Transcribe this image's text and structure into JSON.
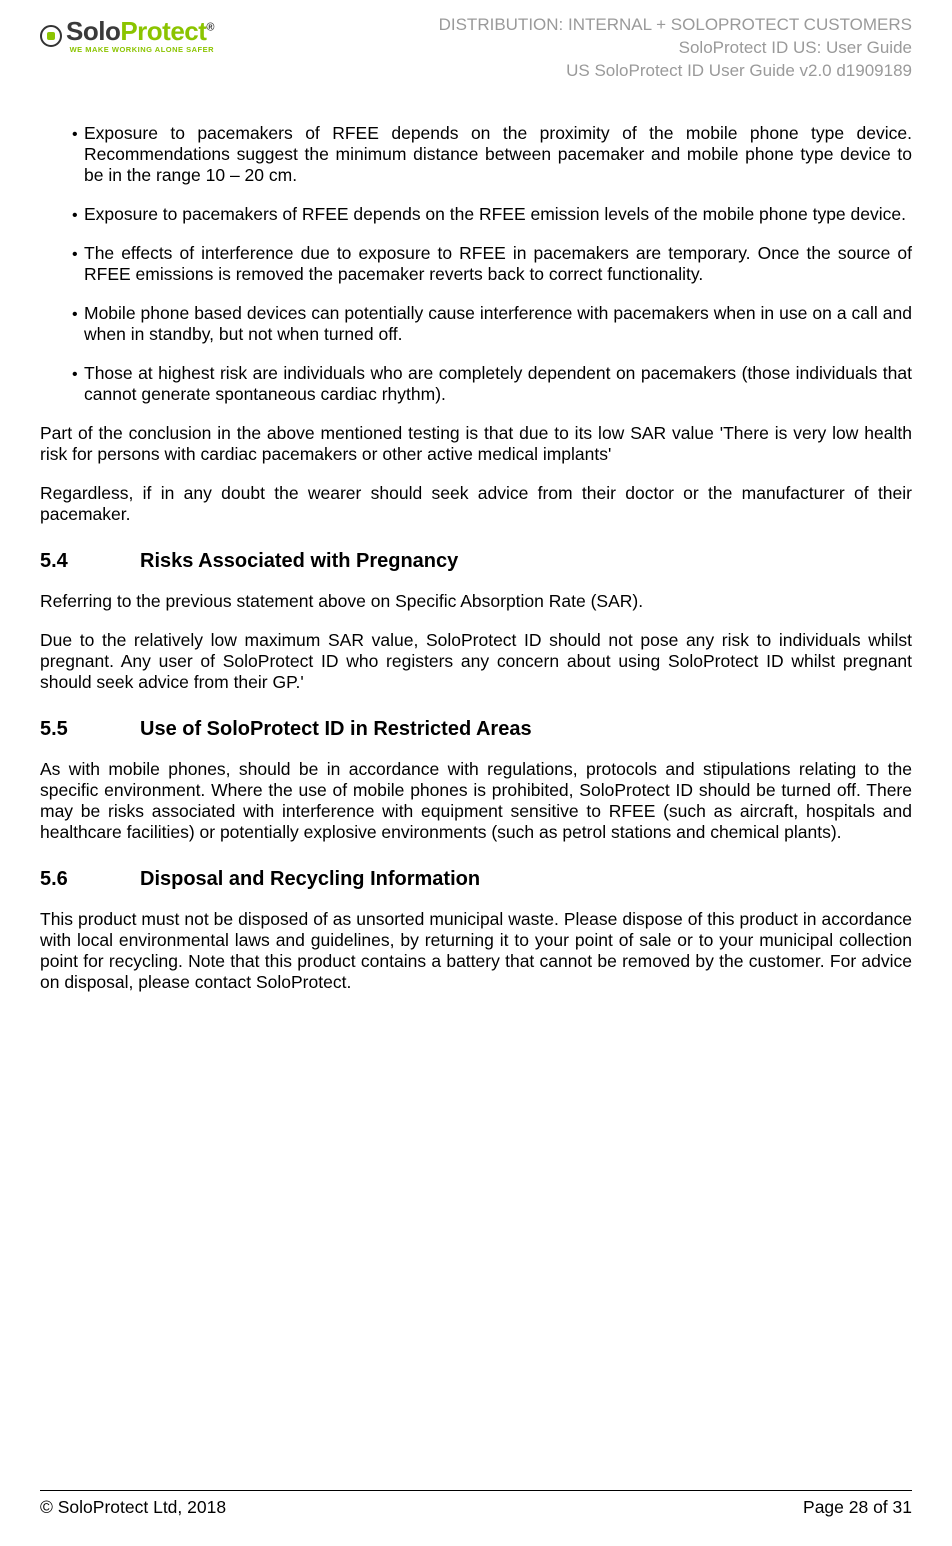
{
  "header": {
    "logo": {
      "name_part1": "Solo",
      "name_part2": "Protect",
      "reg": "®",
      "tagline": "WE MAKE WORKING ALONE SAFER"
    },
    "distribution": "DISTRIBUTION: INTERNAL + SOLOPROTECT CUSTOMERS",
    "doc_title": "SoloProtect ID US: User Guide",
    "doc_id": "US SoloProtect ID User Guide v2.0 d1909189"
  },
  "bullets": [
    "Exposure to pacemakers of RFEE depends on the proximity of the mobile phone type device. Recommendations suggest the minimum distance between pacemaker and mobile phone type device to be in the range 10 – 20 cm.",
    "Exposure to pacemakers of RFEE depends on the RFEE emission levels of the mobile phone type device.",
    "The effects of interference due to exposure to RFEE in pacemakers are temporary.  Once the source of RFEE emissions is removed the pacemaker reverts back to correct functionality.",
    "Mobile phone based devices can potentially cause interference with pacemakers when in use on a call and when in standby, but not when turned off.",
    "Those at highest risk are individuals who are completely dependent on pacemakers (those individuals that cannot generate spontaneous cardiac rhythm)."
  ],
  "conclusion": {
    "p1": "Part of the conclusion in the above mentioned testing is that due to its low SAR value 'There is very low health risk for persons with cardiac pacemakers or other active medical implants'",
    "p2": "Regardless, if in any doubt the wearer should seek advice from their doctor or the manufacturer of their pacemaker."
  },
  "sections": {
    "s54": {
      "num": "5.4",
      "title": "Risks Associated with Pregnancy",
      "p1": "Referring to the previous statement above on Specific Absorption Rate (SAR).",
      "p2": "Due to the relatively low maximum SAR value, SoloProtect ID should not pose any risk to individuals whilst pregnant.  Any user of SoloProtect ID who registers any concern about using SoloProtect ID whilst pregnant should seek advice from their GP.'"
    },
    "s55": {
      "num": "5.5",
      "title": "Use of SoloProtect ID in Restricted Areas",
      "p1": "As with mobile phones, should be in accordance with regulations, protocols and stipulations relating to the specific environment. Where the use of mobile phones is prohibited, SoloProtect ID should be turned off. There may be risks associated with interference with equipment sensitive to RFEE (such as aircraft, hospitals and healthcare facilities) or potentially explosive environments (such as petrol stations and chemical plants)."
    },
    "s56": {
      "num": "5.6",
      "title": "Disposal and Recycling Information",
      "p1": "This product must not be disposed of as unsorted municipal waste. Please dispose of this product in accordance with local environmental laws and guidelines, by returning it to your point of sale or to your municipal collection point for recycling. Note that this product contains a battery that cannot be removed by the customer. For advice on disposal, please contact SoloProtect."
    }
  },
  "footer": {
    "copyright": "© SoloProtect Ltd, 2018",
    "page": "Page 28 of 31"
  },
  "colors": {
    "brand_green": "#8bc400",
    "brand_gray": "#3a3a3a",
    "header_gray": "#9a9a9a",
    "text": "#000000",
    "background": "#ffffff"
  },
  "typography": {
    "body_font": "Arial",
    "heading_font": "Verdana",
    "body_size_pt": 13,
    "heading_size_pt": 15
  }
}
